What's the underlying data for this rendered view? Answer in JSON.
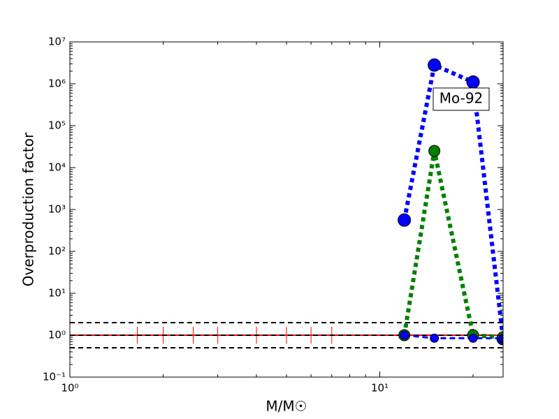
{
  "chart_data": {
    "type": "line",
    "xlabel": "M/M☉",
    "ylabel": "Overproduction factor",
    "annotation": "Mo-92",
    "xscale": "log",
    "yscale": "log",
    "xlim": [
      1,
      25
    ],
    "ylim": [
      0.1,
      10000000
    ],
    "xticks": [
      {
        "value": 1,
        "label": "10⁰"
      },
      {
        "value": 10,
        "label": "10¹"
      }
    ],
    "yticks": [
      {
        "value": 0.1,
        "label": "10⁻¹"
      },
      {
        "value": 1,
        "label": "10⁰"
      },
      {
        "value": 10,
        "label": "10¹"
      },
      {
        "value": 100,
        "label": "10²"
      },
      {
        "value": 1000,
        "label": "10³"
      },
      {
        "value": 10000,
        "label": "10⁴"
      },
      {
        "value": 100000,
        "label": "10⁵"
      },
      {
        "value": 1000000,
        "label": "10⁶"
      },
      {
        "value": 10000000,
        "label": "10⁷"
      }
    ],
    "hlines": [
      2,
      1,
      0.5
    ],
    "hline_color": "#000000",
    "series": [
      {
        "color": "#ff0000",
        "linestyle": "solid",
        "marker": "vline",
        "x": [
          1,
          1.65,
          2,
          2.5,
          3,
          4,
          5,
          6,
          7,
          25
        ],
        "y": [
          1,
          1,
          1,
          1,
          1,
          1,
          1,
          1,
          1,
          1
        ]
      },
      {
        "color": "#0000ff",
        "linestyle": "dotted",
        "marker": "circle-large",
        "x": [
          12,
          15,
          20,
          25
        ],
        "y": [
          560,
          2800000,
          1100000,
          0.83
        ]
      },
      {
        "color": "#008000",
        "linestyle": "dotted",
        "marker": "circle",
        "x": [
          12,
          15,
          20,
          25
        ],
        "y": [
          1,
          25000,
          1,
          0.9
        ]
      },
      {
        "color": "#0000ff",
        "linestyle": "dashed",
        "marker": "circle-small",
        "x": [
          12,
          15,
          20,
          25
        ],
        "y": [
          1,
          0.85,
          0.85,
          0.85
        ]
      }
    ]
  }
}
